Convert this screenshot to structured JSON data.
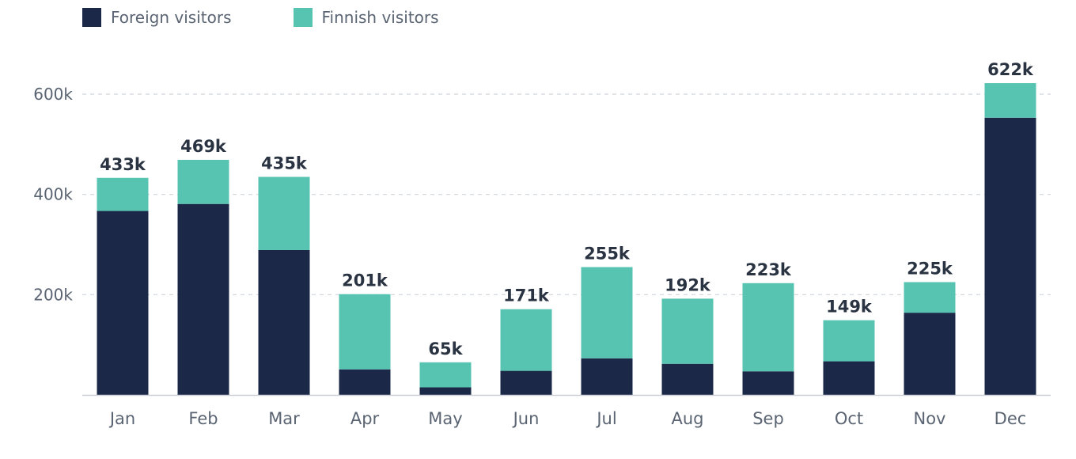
{
  "colors": {
    "foreign": "#1b2848",
    "finnish": "#57c3b1",
    "axis_text": "#5a6472",
    "grid": "#cfd5dc",
    "label": "#2a3342",
    "baseline": "#c9ced6"
  },
  "legend": {
    "items": [
      {
        "label": "Foreign visitors",
        "color": "#1b2848"
      },
      {
        "label": "Finnish visitors",
        "color": "#57c3b1"
      }
    ]
  },
  "chart_data": {
    "type": "bar",
    "stacked": true,
    "categories": [
      "Jan",
      "Feb",
      "Mar",
      "Apr",
      "May",
      "Jun",
      "Jul",
      "Aug",
      "Sep",
      "Oct",
      "Nov",
      "Dec"
    ],
    "series": [
      {
        "name": "Foreign visitors",
        "values": [
          367000,
          381000,
          289000,
          51000,
          15000,
          48000,
          73000,
          62000,
          47000,
          67000,
          164000,
          553000
        ]
      },
      {
        "name": "Finnish visitors",
        "values": [
          66000,
          88000,
          146000,
          150000,
          50000,
          123000,
          182000,
          130000,
          176000,
          82000,
          61000,
          69000
        ]
      }
    ],
    "totals": [
      433000,
      469000,
      435000,
      201000,
      65000,
      171000,
      255000,
      192000,
      223000,
      149000,
      225000,
      622000
    ],
    "total_labels": [
      "433k",
      "469k",
      "435k",
      "201k",
      "65k",
      "171k",
      "255k",
      "192k",
      "223k",
      "149k",
      "225k",
      "622k"
    ],
    "y_ticks": [
      200000,
      400000,
      600000
    ],
    "y_tick_labels": [
      "200k",
      "400k",
      "600k"
    ],
    "ylim": [
      0,
      600000
    ],
    "grid": true,
    "legend_position": "top-left",
    "title": "",
    "xlabel": "",
    "ylabel": ""
  }
}
